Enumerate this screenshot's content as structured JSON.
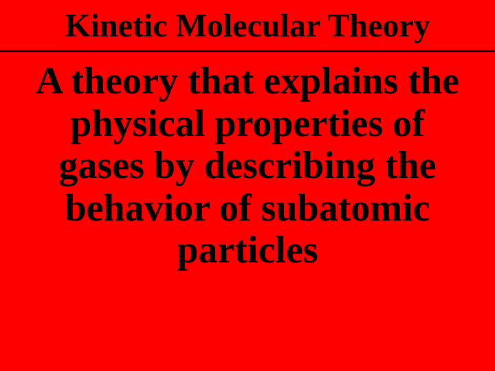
{
  "slide": {
    "title": "Kinetic Molecular Theory",
    "body": "A theory that explains the physical properties of gases by describing the behavior of subatomic particles",
    "background_color": "#ff0000",
    "text_color": "#000000",
    "title_fontsize": 48,
    "body_fontsize": 56,
    "font_family": "Times New Roman",
    "font_weight": "bold",
    "divider_color": "#000000",
    "divider_thickness": 3
  }
}
